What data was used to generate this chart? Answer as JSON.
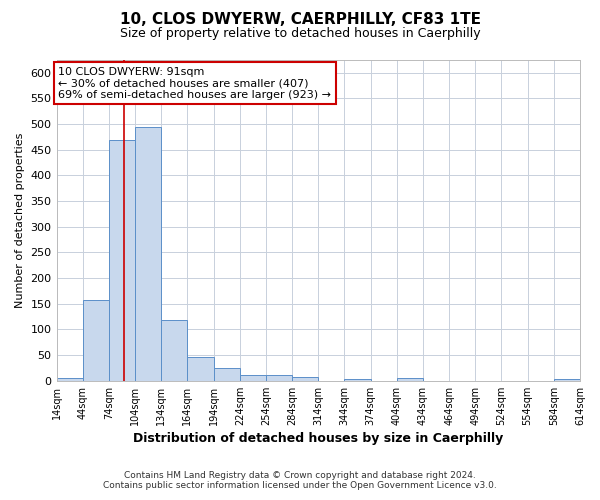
{
  "title": "10, CLOS DWYERW, CAERPHILLY, CF83 1TE",
  "subtitle": "Size of property relative to detached houses in Caerphilly",
  "xlabel": "Distribution of detached houses by size in Caerphilly",
  "ylabel": "Number of detached properties",
  "bar_color": "#c8d8ed",
  "bar_edge_color": "#5b8fc9",
  "bin_edges": [
    14,
    44,
    74,
    104,
    134,
    164,
    194,
    224,
    254,
    284,
    314,
    344,
    374,
    404,
    434,
    464,
    494,
    524,
    554,
    584,
    614
  ],
  "bar_heights": [
    5,
    157,
    470,
    495,
    118,
    47,
    24,
    12,
    12,
    7,
    0,
    3,
    0,
    5,
    0,
    0,
    0,
    0,
    0,
    3
  ],
  "tick_labels": [
    "14sqm",
    "44sqm",
    "74sqm",
    "104sqm",
    "134sqm",
    "164sqm",
    "194sqm",
    "224sqm",
    "254sqm",
    "284sqm",
    "314sqm",
    "344sqm",
    "374sqm",
    "404sqm",
    "434sqm",
    "464sqm",
    "494sqm",
    "524sqm",
    "554sqm",
    "584sqm",
    "614sqm"
  ],
  "ylim": [
    0,
    625
  ],
  "yticks": [
    0,
    50,
    100,
    150,
    200,
    250,
    300,
    350,
    400,
    450,
    500,
    550,
    600
  ],
  "red_line_x": 91,
  "annotation_title": "10 CLOS DWYERW: 91sqm",
  "annotation_line1": "← 30% of detached houses are smaller (407)",
  "annotation_line2": "69% of semi-detached houses are larger (923) →",
  "annotation_box_color": "#ffffff",
  "annotation_box_edge": "#cc0000",
  "red_line_color": "#cc0000",
  "grid_color": "#c8d0dc",
  "plot_bg_color": "#ffffff",
  "fig_bg_color": "#ffffff",
  "footer_line1": "Contains HM Land Registry data © Crown copyright and database right 2024.",
  "footer_line2": "Contains public sector information licensed under the Open Government Licence v3.0."
}
